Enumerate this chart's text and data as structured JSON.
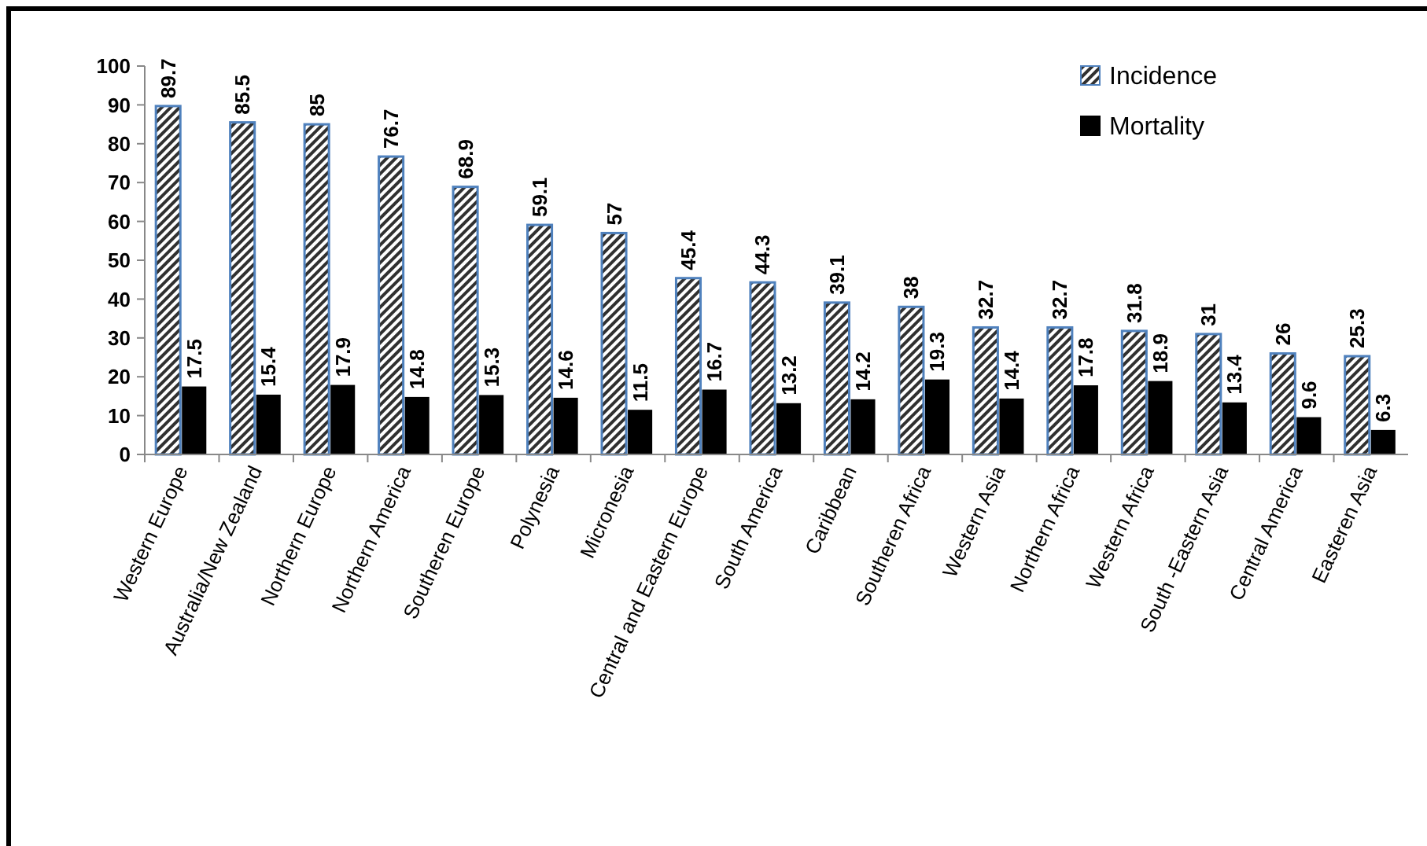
{
  "chart_data": {
    "type": "bar",
    "categories": [
      "Western Europe",
      "Australia/New Zealand",
      "Northern Europe",
      "Northern America",
      "Southeren Europe",
      "Polynesia",
      "Micronesia",
      "Central and Eastern Europe",
      "South America",
      "Caribbean",
      "Southeren Africa",
      "Western Asia",
      "Northern Africa",
      "Western Africa",
      "South -Eastern Asia",
      "Central America",
      "Easteren Asia"
    ],
    "series": [
      {
        "name": "Incidence",
        "color": "#4f81bd",
        "values": [
          89.7,
          85.5,
          85,
          76.7,
          68.9,
          59.1,
          57,
          45.4,
          44.3,
          39.1,
          38,
          32.7,
          32.7,
          31.8,
          31,
          26,
          25.3
        ]
      },
      {
        "name": "Mortality",
        "color": "#000000",
        "values": [
          17.5,
          15.4,
          17.9,
          14.8,
          15.3,
          14.6,
          11.5,
          16.7,
          13.2,
          14.2,
          19.3,
          14.4,
          17.8,
          18.9,
          13.4,
          9.6,
          6.3
        ]
      }
    ],
    "ylim": [
      0,
      100
    ],
    "yticks": [
      0,
      10,
      20,
      30,
      40,
      50,
      60,
      70,
      80,
      90,
      100
    ],
    "data_labels": true,
    "legend": "top right",
    "grid": false
  }
}
